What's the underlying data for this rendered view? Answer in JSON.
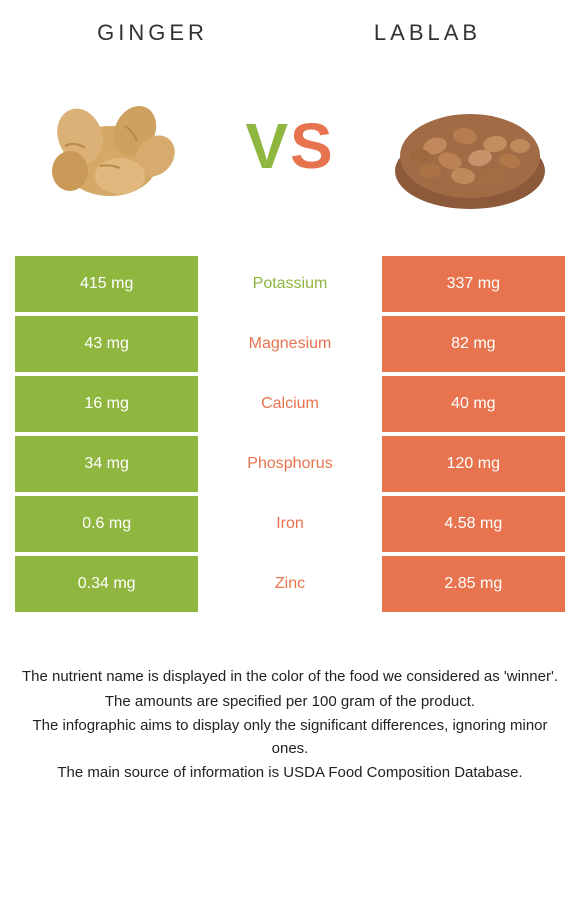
{
  "food_left": {
    "title": "GINGER"
  },
  "food_right": {
    "title": "LABLAB"
  },
  "vs": {
    "v": "V",
    "s": "S"
  },
  "colors": {
    "left_bg": "#8fb63f",
    "right_bg": "#e8744f",
    "mid_bg": "#ffffff"
  },
  "rows": [
    {
      "nutrient": "Potassium",
      "left": "415 mg",
      "right": "337 mg",
      "winner": "left"
    },
    {
      "nutrient": "Magnesium",
      "left": "43 mg",
      "right": "82 mg",
      "winner": "right"
    },
    {
      "nutrient": "Calcium",
      "left": "16 mg",
      "right": "40 mg",
      "winner": "right"
    },
    {
      "nutrient": "Phosphorus",
      "left": "34 mg",
      "right": "120 mg",
      "winner": "right"
    },
    {
      "nutrient": "Iron",
      "left": "0.6 mg",
      "right": "4.58 mg",
      "winner": "right"
    },
    {
      "nutrient": "Zinc",
      "left": "0.34 mg",
      "right": "2.85 mg",
      "winner": "right"
    }
  ],
  "footer": {
    "l1": "The nutrient name is displayed in the color of the food we considered as 'winner'.",
    "l2": "The amounts are specified per 100 gram of the product.",
    "l3": "The infographic aims to display only the significant differences, ignoring minor ones.",
    "l4": "The main source of information is USDA Food Composition Database."
  }
}
